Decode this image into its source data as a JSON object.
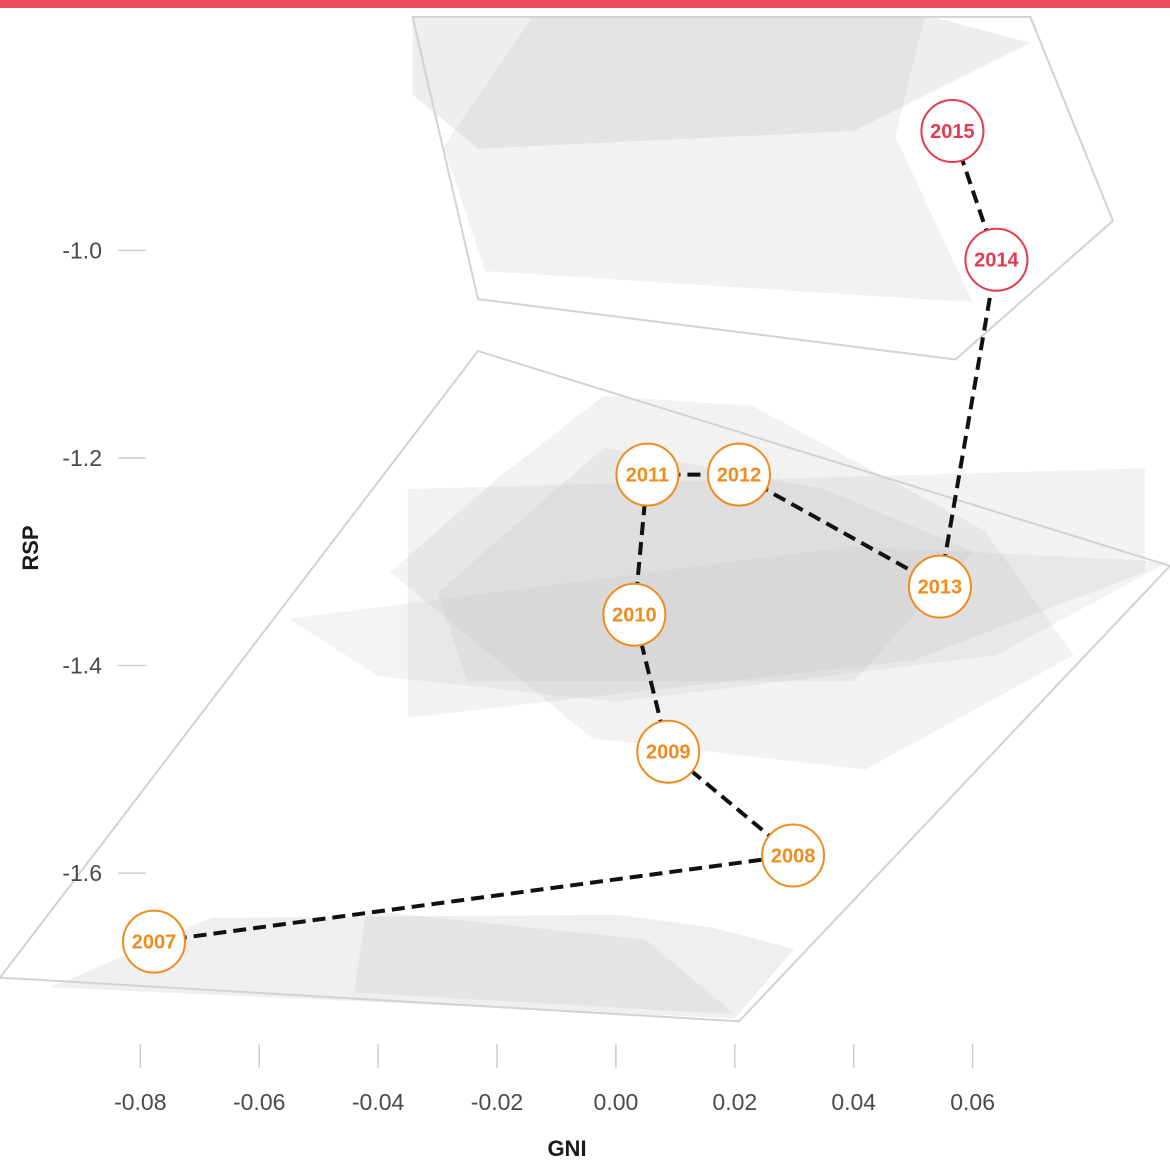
{
  "colors": {
    "top_bar": "#ef4a5d",
    "orange": "#f08c1e",
    "red": "#e8394f",
    "path": "#111111",
    "hull_fill": "#bdbdbd",
    "hull_outline": "#d2d2d2",
    "tick": "#cccccc"
  },
  "chart_data": {
    "type": "scatter",
    "xlabel": "GNI",
    "ylabel": "RSP",
    "x_ticks": [
      -0.08,
      -0.06,
      -0.04,
      -0.02,
      0.0,
      0.02,
      0.04,
      0.06
    ],
    "x_tick_labels": [
      "-0.08",
      "-0.06",
      "-0.04",
      "-0.02",
      "0.00",
      "0.02",
      "0.04",
      "0.06"
    ],
    "y_ticks": [
      -1.0,
      -1.2,
      -1.4,
      -1.6
    ],
    "y_tick_labels": [
      "-1.0",
      "-1.2",
      "-1.4",
      "-1.6"
    ],
    "xlim": [
      -0.1036,
      0.0932
    ],
    "ylim": [
      -1.7463,
      -0.7684
    ],
    "grid": false,
    "connected": true,
    "line_style": "dashed",
    "points": [
      {
        "label": "2007",
        "x": -0.0777,
        "y": -1.666,
        "color": "orange"
      },
      {
        "label": "2008",
        "x": 0.0298,
        "y": -1.583,
        "color": "orange"
      },
      {
        "label": "2009",
        "x": 0.0088,
        "y": -1.483,
        "color": "orange"
      },
      {
        "label": "2010",
        "x": 0.0031,
        "y": -1.351,
        "color": "orange"
      },
      {
        "label": "2011",
        "x": 0.0053,
        "y": -1.216,
        "color": "orange"
      },
      {
        "label": "2012",
        "x": 0.0207,
        "y": -1.216,
        "color": "orange"
      },
      {
        "label": "2013",
        "x": 0.0545,
        "y": -1.324,
        "color": "orange"
      },
      {
        "label": "2014",
        "x": 0.064,
        "y": -1.009,
        "color": "red"
      },
      {
        "label": "2015",
        "x": 0.0566,
        "y": -0.885,
        "color": "red"
      }
    ],
    "hull_outlines": [
      [
        [
          -0.0232,
          -1.0469
        ],
        [
          0.0571,
          -1.1051
        ],
        [
          0.0836,
          -0.9715
        ],
        [
          0.0697,
          -0.775
        ],
        [
          -0.0342,
          -0.775
        ]
      ],
      [
        [
          -0.0232,
          -1.0969
        ],
        [
          -0.1036,
          -1.7006
        ],
        [
          0.0207,
          -1.7427
        ],
        [
          0.0932,
          -1.304
        ]
      ]
    ],
    "hull_fills": [
      {
        "opacity": 0.26,
        "points": [
          [
            -0.0342,
            -0.775
          ],
          [
            0.0532,
            -0.775
          ],
          [
            0.0697,
            -0.8
          ],
          [
            0.04,
            -0.885
          ],
          [
            -0.0232,
            -0.902
          ],
          [
            -0.0342,
            -0.85
          ]
        ]
      },
      {
        "opacity": 0.2,
        "points": [
          [
            -0.014,
            -0.775
          ],
          [
            0.052,
            -0.775
          ],
          [
            0.047,
            -0.89
          ],
          [
            0.06,
            -1.05
          ],
          [
            -0.022,
            -1.02
          ],
          [
            -0.029,
            -0.9
          ]
        ]
      },
      {
        "opacity": 0.2,
        "points": [
          [
            -0.002,
            -1.14
          ],
          [
            0.023,
            -1.15
          ],
          [
            0.062,
            -1.27
          ],
          [
            0.077,
            -1.39
          ],
          [
            0.042,
            -1.5
          ],
          [
            -0.004,
            -1.47
          ],
          [
            -0.038,
            -1.31
          ],
          [
            -0.02,
            -1.22
          ]
        ]
      },
      {
        "opacity": 0.2,
        "points": [
          [
            -0.035,
            -1.23
          ],
          [
            0.089,
            -1.21
          ],
          [
            0.089,
            -1.31
          ],
          [
            0.05,
            -1.395
          ],
          [
            -0.035,
            -1.45
          ]
        ]
      },
      {
        "opacity": 0.18,
        "points": [
          [
            -0.055,
            -1.355
          ],
          [
            0.04,
            -1.285
          ],
          [
            0.093,
            -1.3
          ],
          [
            0.064,
            -1.39
          ],
          [
            0.0,
            -1.435
          ],
          [
            -0.04,
            -1.41
          ]
        ]
      },
      {
        "opacity": 0.22,
        "points": [
          [
            -0.03,
            -1.33
          ],
          [
            -0.002,
            -1.19
          ],
          [
            0.035,
            -1.23
          ],
          [
            0.06,
            -1.29
          ],
          [
            0.04,
            -1.415
          ],
          [
            -0.025,
            -1.415
          ]
        ]
      },
      {
        "opacity": 0.24,
        "points": [
          [
            -0.068,
            -1.643
          ],
          [
            0.0,
            -1.64
          ],
          [
            0.016,
            -1.652
          ],
          [
            0.03,
            -1.673
          ],
          [
            0.02,
            -1.74
          ],
          [
            -0.095,
            -1.71
          ]
        ]
      },
      {
        "opacity": 0.22,
        "points": [
          [
            -0.042,
            -1.636
          ],
          [
            0.005,
            -1.664
          ],
          [
            0.02,
            -1.736
          ],
          [
            -0.044,
            -1.715
          ]
        ]
      }
    ]
  }
}
